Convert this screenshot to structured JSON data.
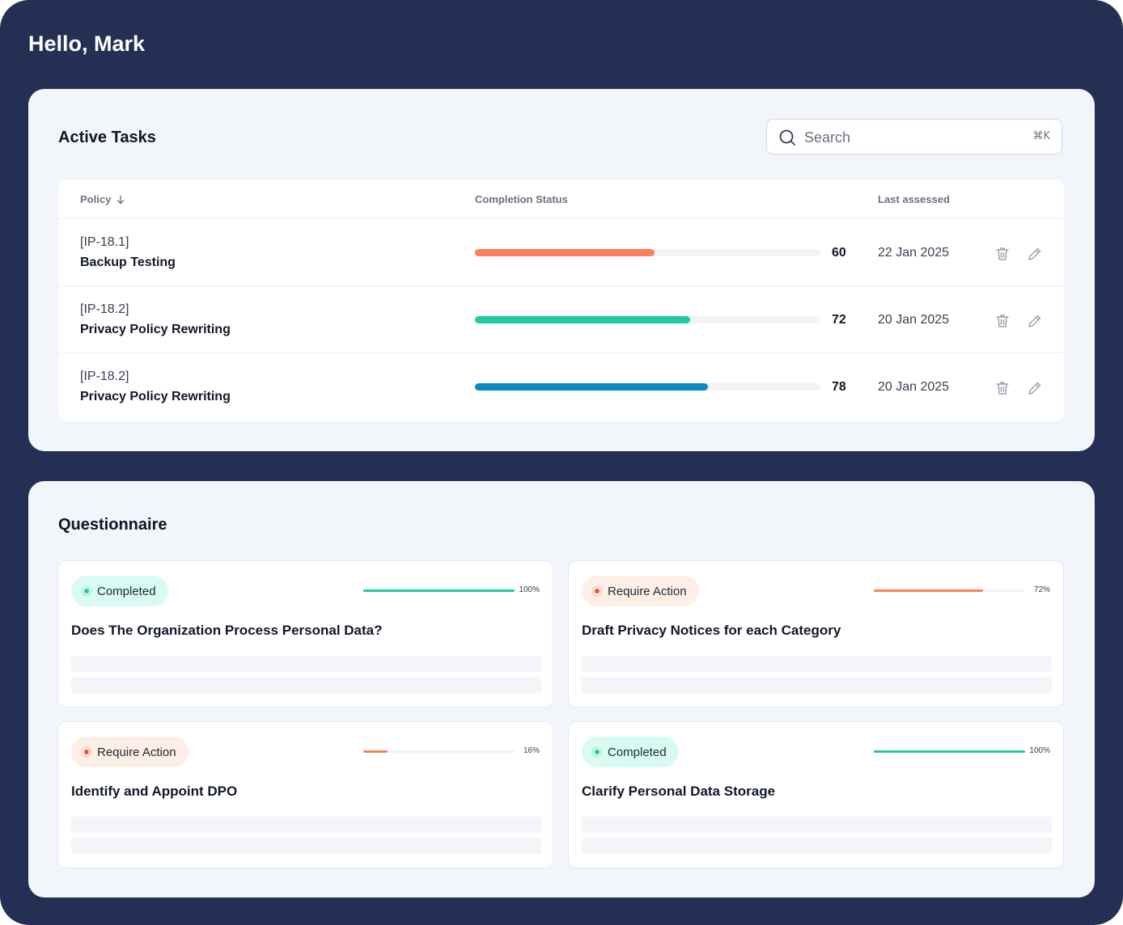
{
  "greeting": "Hello, Mark",
  "colors": {
    "background": "#252f53",
    "panel": "#f2f5fa",
    "orange": "#fd7f5c",
    "green": "#23c9a1",
    "blue": "#0a8bc2"
  },
  "tasks": {
    "title": "Active Tasks",
    "search": {
      "placeholder": "Search",
      "shortcut": "⌘K",
      "icon": "search-icon"
    },
    "columns": {
      "policy": "Policy",
      "status": "Completion Status",
      "last_assessed": "Last assessed"
    },
    "rows": [
      {
        "code": "[IP-18.1]",
        "name": "Backup Testing",
        "progress": 60,
        "percent": "60",
        "date": "22 Jan 2025",
        "color": "#fd7f5c"
      },
      {
        "code": "[IP-18.2]",
        "name": "Privacy Policy Rewriting",
        "progress": 72,
        "percent": "72",
        "date": "20 Jan 2025",
        "color": "#23c9a1"
      },
      {
        "code": "[IP-18.2]",
        "name": "Privacy Policy Rewriting",
        "progress": 78,
        "percent": "78",
        "date": "20 Jan 2025",
        "color": "#0a8bc2"
      }
    ],
    "row_icons": [
      "trash-icon",
      "edit-icon"
    ]
  },
  "questionnaire": {
    "title": "Questionnaire",
    "cards": [
      {
        "status": "Completed",
        "progress": 100,
        "percent": "100%",
        "title": "Does The Organization Process Personal Data?",
        "badge_bg": "#d9fbf1",
        "dot": "#23c9a1",
        "bar": "#23c9a1"
      },
      {
        "status": "Require Action",
        "progress": 72,
        "percent": "72%",
        "title": "Draft Privacy Notices for each Category",
        "badge_bg": "#fdeee8",
        "dot": "#f0542c",
        "bar": "#fd7f5c"
      },
      {
        "status": "Require Action",
        "progress": 16,
        "percent": "16%",
        "title": "Identify and Appoint DPO",
        "badge_bg": "#fdeee8",
        "dot": "#f0542c",
        "bar": "#fd7f5c"
      },
      {
        "status": "Completed",
        "progress": 100,
        "percent": "100%",
        "title": "Clarify Personal Data Storage",
        "badge_bg": "#d9fbf1",
        "dot": "#23c9a1",
        "bar": "#23c9a1"
      }
    ]
  }
}
